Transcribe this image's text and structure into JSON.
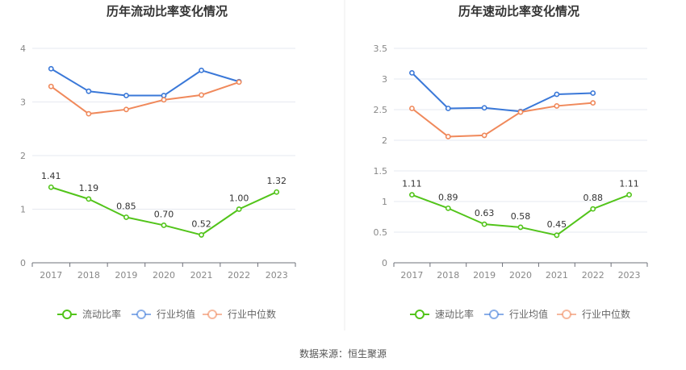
{
  "chart_data": [
    {
      "type": "line",
      "title": "历年流动比率变化情况",
      "categories": [
        "2017",
        "2018",
        "2019",
        "2020",
        "2021",
        "2022",
        "2023"
      ],
      "ylim": [
        0,
        4
      ],
      "yticks": [
        "0",
        "1",
        "2",
        "3",
        "4"
      ],
      "grid": true,
      "legend_position": "bottom",
      "series": [
        {
          "name": "流动比率",
          "color": "#52c41a",
          "labeled": true,
          "values": [
            1.41,
            1.19,
            0.85,
            0.7,
            0.52,
            1.0,
            1.32
          ],
          "labels": [
            "1.41",
            "1.19",
            "0.85",
            "0.70",
            "0.52",
            "1.00",
            "1.32"
          ]
        },
        {
          "name": "行业均值",
          "color": "#3a78d8",
          "labeled": false,
          "values": [
            3.62,
            3.2,
            3.12,
            3.12,
            3.59,
            3.38,
            null
          ]
        },
        {
          "name": "行业中位数",
          "color": "#f0895b",
          "labeled": false,
          "values": [
            3.29,
            2.78,
            2.86,
            3.04,
            3.13,
            3.37,
            null
          ]
        }
      ]
    },
    {
      "type": "line",
      "title": "历年速动比率变化情况",
      "categories": [
        "2017",
        "2018",
        "2019",
        "2020",
        "2021",
        "2022",
        "2023"
      ],
      "ylim": [
        0,
        3.5
      ],
      "yticks": [
        "0",
        "0.5",
        "1",
        "1.5",
        "2",
        "2.5",
        "3",
        "3.5"
      ],
      "grid": true,
      "legend_position": "bottom",
      "series": [
        {
          "name": "速动比率",
          "color": "#52c41a",
          "labeled": true,
          "values": [
            1.11,
            0.89,
            0.63,
            0.58,
            0.45,
            0.88,
            1.11
          ],
          "labels": [
            "1.11",
            "0.89",
            "0.63",
            "0.58",
            "0.45",
            "0.88",
            "1.11"
          ]
        },
        {
          "name": "行业均值",
          "color": "#3a78d8",
          "labeled": false,
          "values": [
            3.1,
            2.52,
            2.53,
            2.47,
            2.75,
            2.77,
            null
          ]
        },
        {
          "name": "行业中位数",
          "color": "#f0895b",
          "labeled": false,
          "values": [
            2.52,
            2.06,
            2.08,
            2.46,
            2.56,
            2.61,
            null
          ]
        }
      ]
    }
  ],
  "footer": {
    "source": "数据来源：恒生聚源"
  }
}
